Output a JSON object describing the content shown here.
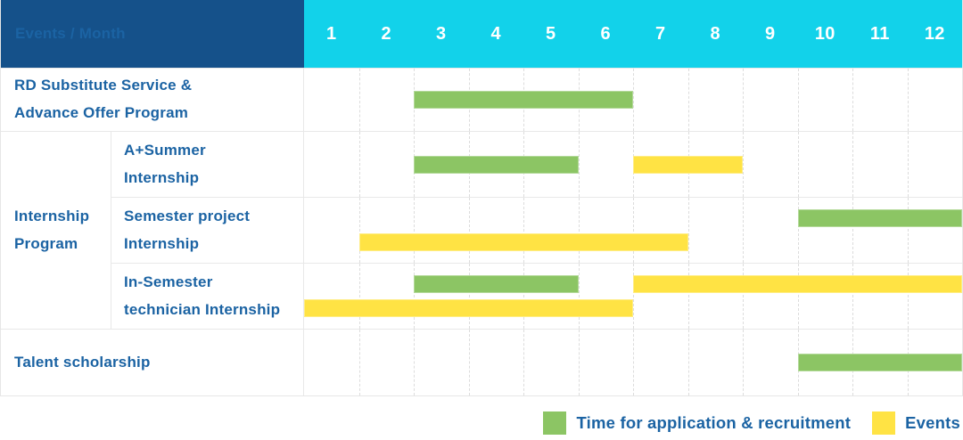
{
  "header": {
    "title": "Events / Month"
  },
  "colors": {
    "header_bg": "#15518A",
    "months_bg": "#12D2EA",
    "green": "#8CC564",
    "yellow": "#FFE344",
    "label_text": "#1B63A3"
  },
  "chart_data": {
    "type": "bar",
    "subtype": "gantt",
    "title": "Events / Month",
    "xlabel": "Month",
    "x_ticks": [
      "1",
      "2",
      "3",
      "4",
      "5",
      "6",
      "7",
      "8",
      "9",
      "10",
      "11",
      "12"
    ],
    "x_range": [
      1,
      12
    ],
    "grid": "dashed-vertical-month-lines",
    "legend_position": "bottom-right",
    "series_legend": [
      {
        "name": "Time for application & recruitment",
        "color": "#8CC564"
      },
      {
        "name": "Events",
        "color": "#FFE344"
      }
    ],
    "rows": [
      {
        "group": "",
        "label": "RD Substitute Service &\nAdvance Offer Program",
        "bars": [
          {
            "series": "Time for application & recruitment",
            "start_month": 3,
            "end_month": 6,
            "lane": "mid"
          }
        ]
      },
      {
        "group": "Internship\nProgram",
        "label": "A+Summer\nInternship",
        "bars": [
          {
            "series": "Time for application & recruitment",
            "start_month": 3,
            "end_month": 5,
            "lane": "mid"
          },
          {
            "series": "Events",
            "start_month": 7,
            "end_month": 8,
            "lane": "mid"
          }
        ]
      },
      {
        "group": "Internship\nProgram",
        "label": "Semester project\nInternship",
        "bars": [
          {
            "series": "Time for application & recruitment",
            "start_month": 10,
            "end_month": 12,
            "lane": "top"
          },
          {
            "series": "Events",
            "start_month": 2,
            "end_month": 7,
            "lane": "bottom"
          }
        ]
      },
      {
        "group": "Internship\nProgram",
        "label": "In-Semester\ntechnician Internship",
        "bars": [
          {
            "series": "Time for application & recruitment",
            "start_month": 3,
            "end_month": 5,
            "lane": "top"
          },
          {
            "series": "Events",
            "start_month": 7,
            "end_month": 12,
            "lane": "top"
          },
          {
            "series": "Events",
            "start_month": 1,
            "end_month": 6,
            "lane": "bottom"
          }
        ]
      },
      {
        "group": "",
        "label": "Talent scholarship",
        "bars": [
          {
            "series": "Time for application & recruitment",
            "start_month": 10,
            "end_month": 12,
            "lane": "mid"
          }
        ]
      }
    ]
  },
  "legend": {
    "items": [
      {
        "label": "Time for application & recruitment",
        "color": "#8CC564"
      },
      {
        "label": "Events",
        "color": "#FFE344"
      }
    ]
  }
}
